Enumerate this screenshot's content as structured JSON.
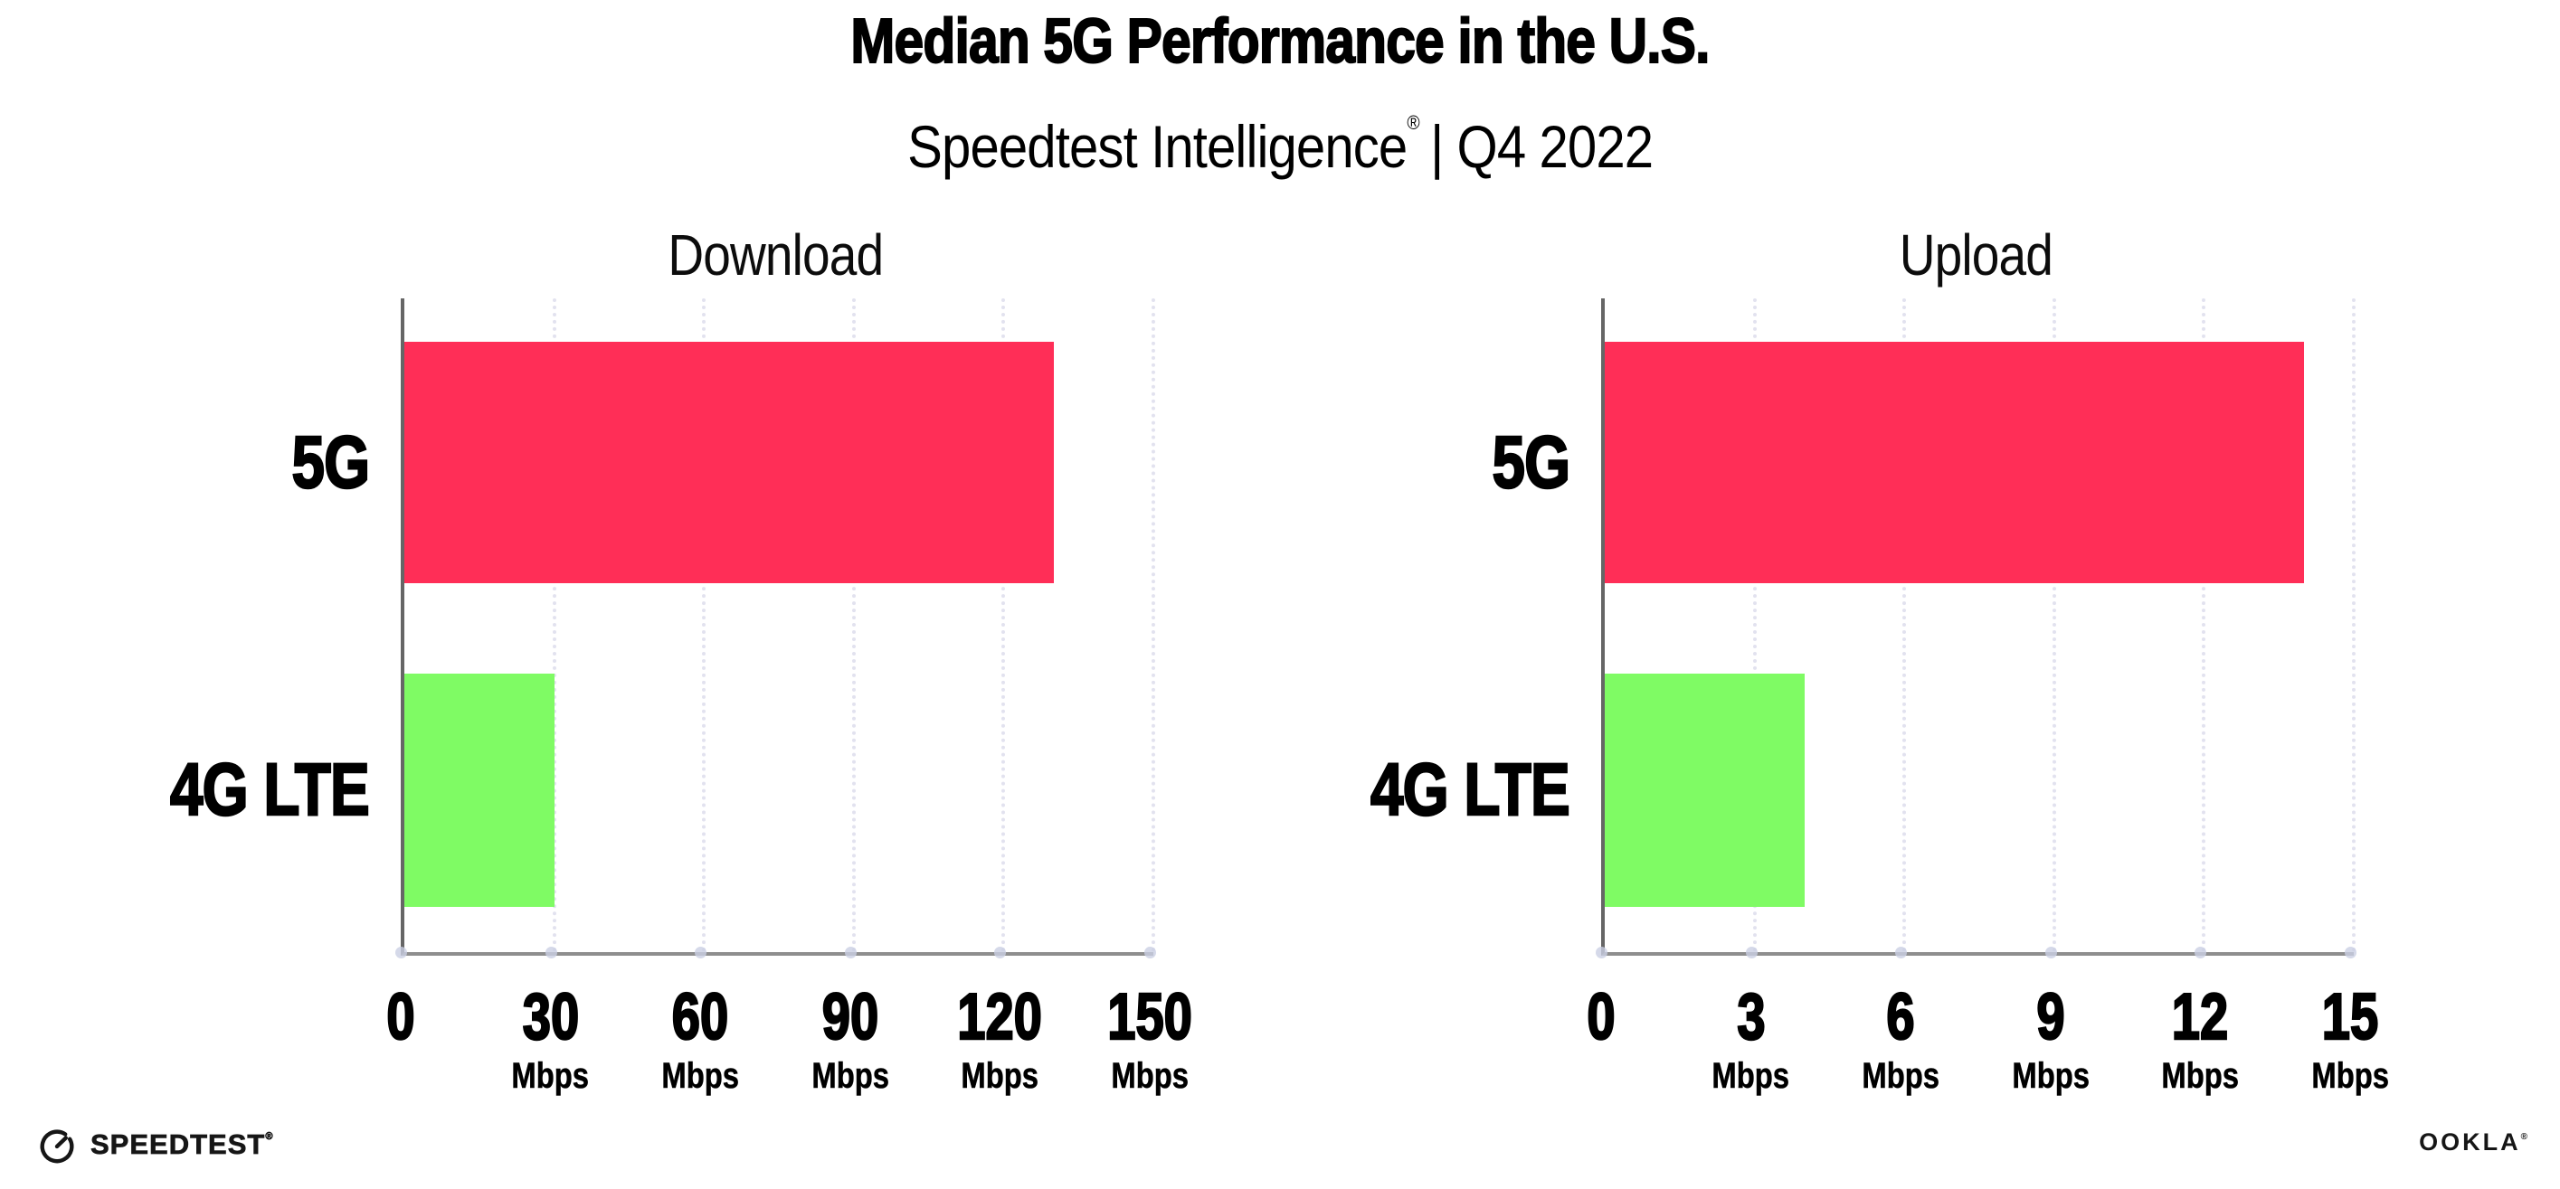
{
  "header": {
    "title": "Median 5G Performance in the U.S.",
    "subtitle_brand": "Speedtest Intelligence",
    "subtitle_reg": "®",
    "subtitle_rest": "| Q4 2022"
  },
  "footer": {
    "speedtest_label": "SPEEDTEST",
    "speedtest_reg": "®",
    "ookla_label": "OOKLA",
    "ookla_reg": "®"
  },
  "colors": {
    "bar_5g": "#ff2e57",
    "bar_4g_lte": "#7ffb64",
    "gridline": "#e2e2ef",
    "x_axis": "#8e8e8e",
    "y_axis": "#666666",
    "text": "#000000"
  },
  "chart_data": [
    {
      "type": "bar",
      "orientation": "horizontal",
      "title": "Download",
      "categories": [
        "5G",
        "4G LTE"
      ],
      "values": [
        130,
        30
      ],
      "unit": "Mbps",
      "xlabel": "",
      "ylabel": "",
      "xlim": [
        0,
        150
      ],
      "xticks": [
        0,
        30,
        60,
        90,
        120,
        150
      ],
      "tick_unit_label": "Mbps",
      "bar_colors": [
        "#ff2e57",
        "#7ffb64"
      ],
      "grid": "vertical-dotted",
      "legend": "none"
    },
    {
      "type": "bar",
      "orientation": "horizontal",
      "title": "Upload",
      "categories": [
        "5G",
        "4G LTE"
      ],
      "values": [
        14,
        4
      ],
      "unit": "Mbps",
      "xlabel": "",
      "ylabel": "",
      "xlim": [
        0,
        15
      ],
      "xticks": [
        0,
        3,
        6,
        9,
        12,
        15
      ],
      "tick_unit_label": "Mbps",
      "bar_colors": [
        "#ff2e57",
        "#7ffb64"
      ],
      "grid": "vertical-dotted",
      "legend": "none"
    }
  ]
}
